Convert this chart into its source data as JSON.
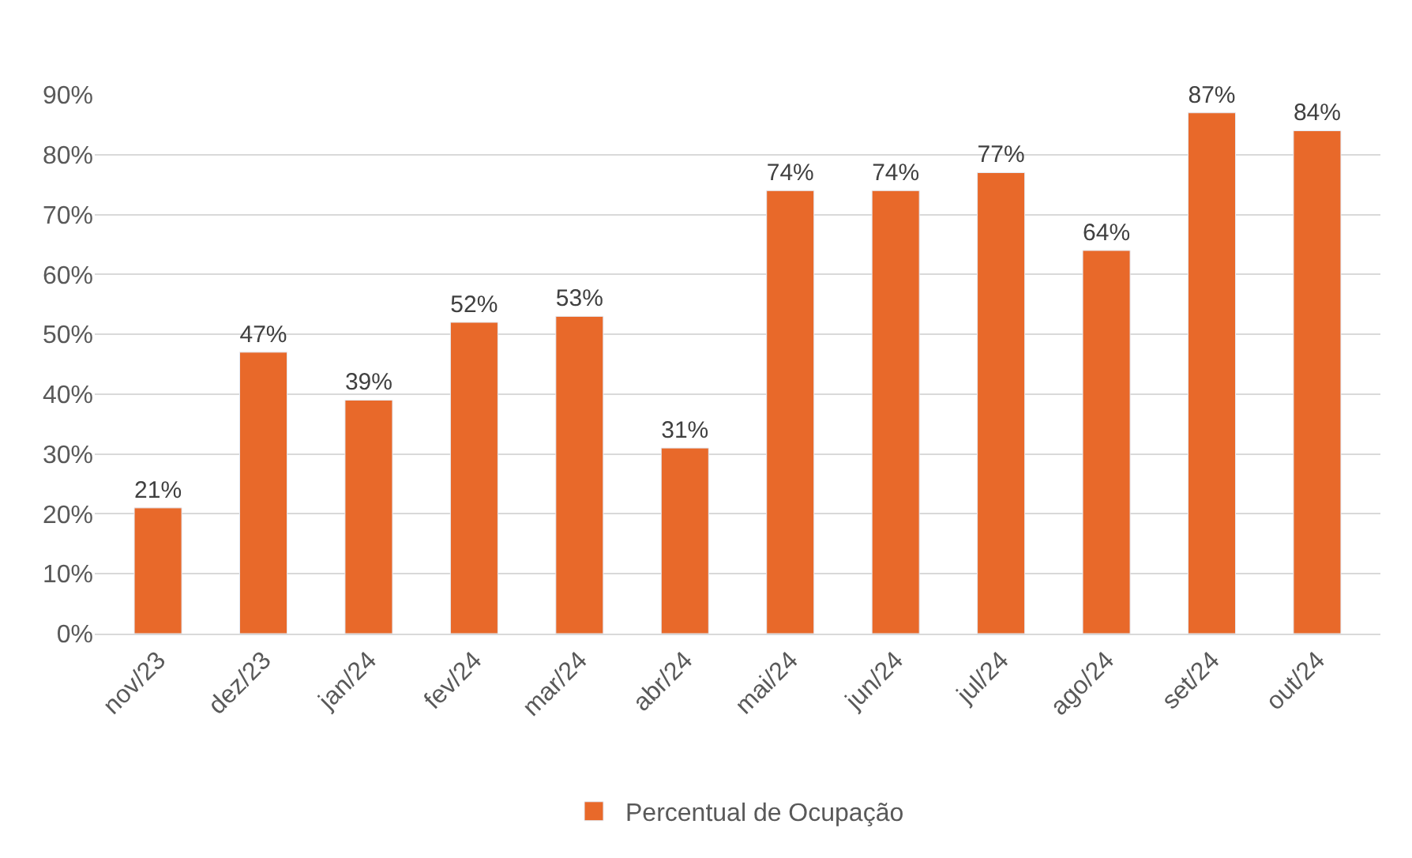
{
  "chart_data": {
    "type": "bar",
    "categories": [
      "nov/23",
      "dez/23",
      "jan/24",
      "fev/24",
      "mar/24",
      "abr/24",
      "mai/24",
      "jun/24",
      "jul/24",
      "ago/24",
      "set/24",
      "out/24"
    ],
    "series": [
      {
        "name": "Percentual de Ocupação",
        "color": "#e8692a",
        "values": [
          21,
          47,
          39,
          52,
          53,
          31,
          74,
          74,
          77,
          64,
          87,
          84
        ],
        "value_labels": [
          "21%",
          "47%",
          "39%",
          "52%",
          "53%",
          "31%",
          "74%",
          "74%",
          "77%",
          "64%",
          "87%",
          "84%"
        ]
      }
    ],
    "ylim": [
      0,
      90
    ],
    "yticks": [
      {
        "value": 0,
        "label": "0%"
      },
      {
        "value": 10,
        "label": "10%"
      },
      {
        "value": 20,
        "label": "20%"
      },
      {
        "value": 30,
        "label": "30%"
      },
      {
        "value": 40,
        "label": "40%"
      },
      {
        "value": 50,
        "label": "50%"
      },
      {
        "value": 60,
        "label": "60%"
      },
      {
        "value": 70,
        "label": "70%"
      },
      {
        "value": 80,
        "label": "80%"
      },
      {
        "value": 90,
        "label": "90%"
      }
    ],
    "grid": "y",
    "legend": "bottom"
  }
}
